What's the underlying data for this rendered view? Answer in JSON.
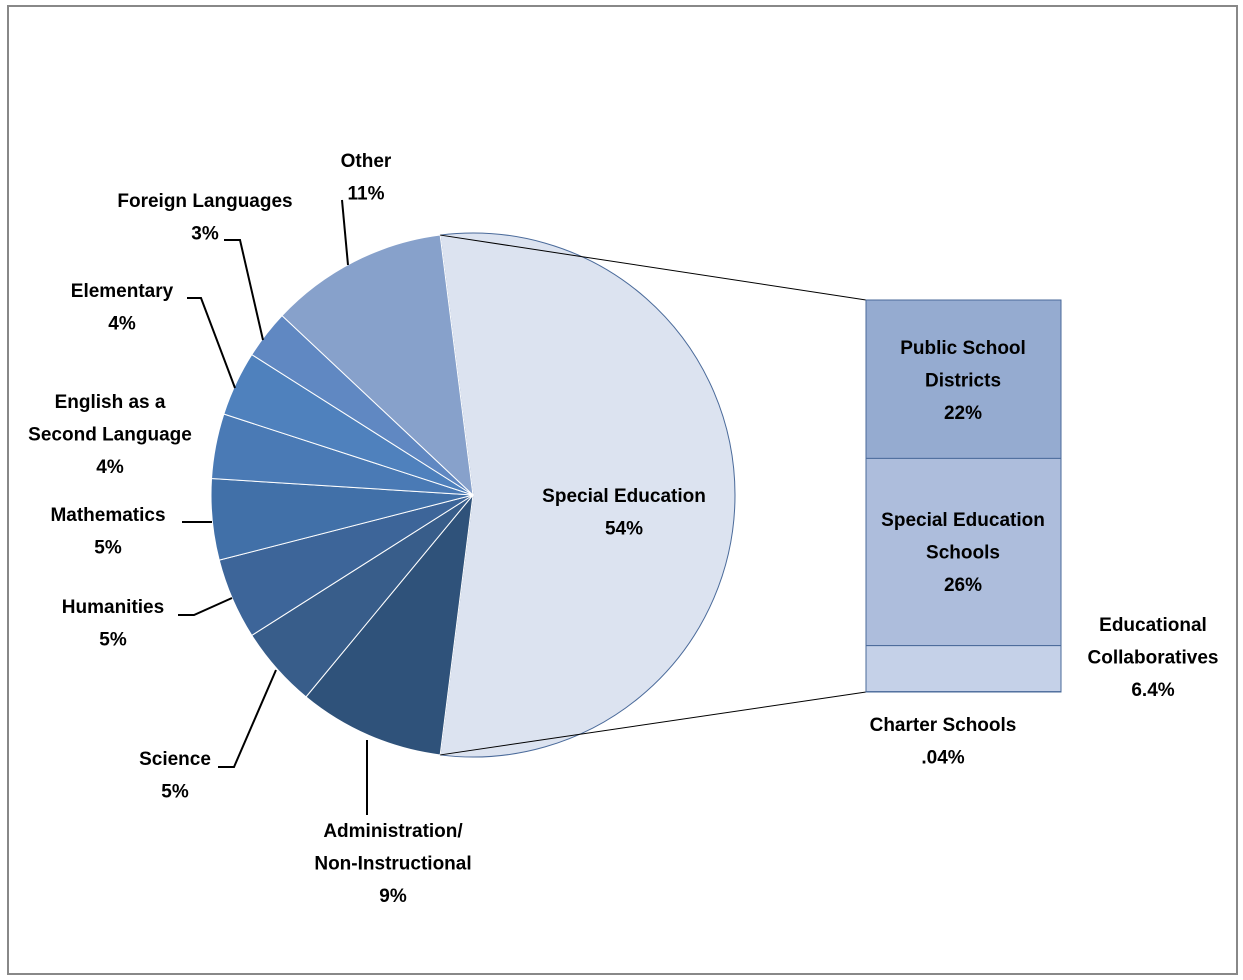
{
  "chart_data": {
    "type": "pie",
    "categories": [
      [
        "Special Education"
      ],
      [
        "Administration/",
        "Non-Instructional"
      ],
      [
        "Science"
      ],
      [
        "Humanities"
      ],
      [
        "Mathematics"
      ],
      [
        "English as a",
        "Second Language"
      ],
      [
        "Elementary"
      ],
      [
        "Foreign Languages"
      ],
      [
        "Other"
      ]
    ],
    "values": [
      54,
      9,
      5,
      5,
      5,
      4,
      4,
      3,
      11
    ],
    "value_labels": [
      "54%",
      "9%",
      "5%",
      "5%",
      "5%",
      "4%",
      "4%",
      "3%",
      "11%"
    ],
    "colors": [
      "#dce3f0",
      "#2f527a",
      "#385d8a",
      "#3d6599",
      "#4170a8",
      "#4a7ab5",
      "#4f81bd",
      "#6088c2",
      "#87a1cb"
    ],
    "bar": {
      "categories": [
        [
          "Public School",
          "Districts"
        ],
        [
          "Special Education",
          "Schools"
        ],
        [
          "Educational",
          "Collaboratives"
        ],
        [
          "Charter Schools"
        ]
      ],
      "values": [
        22,
        26,
        6.4,
        0.04
      ],
      "value_labels": [
        "22%",
        "26%",
        "6.4%",
        ".04%"
      ],
      "colors": [
        "#95abd0",
        "#adbddc",
        "#c5d1e8",
        "#dbe2ef"
      ]
    }
  }
}
